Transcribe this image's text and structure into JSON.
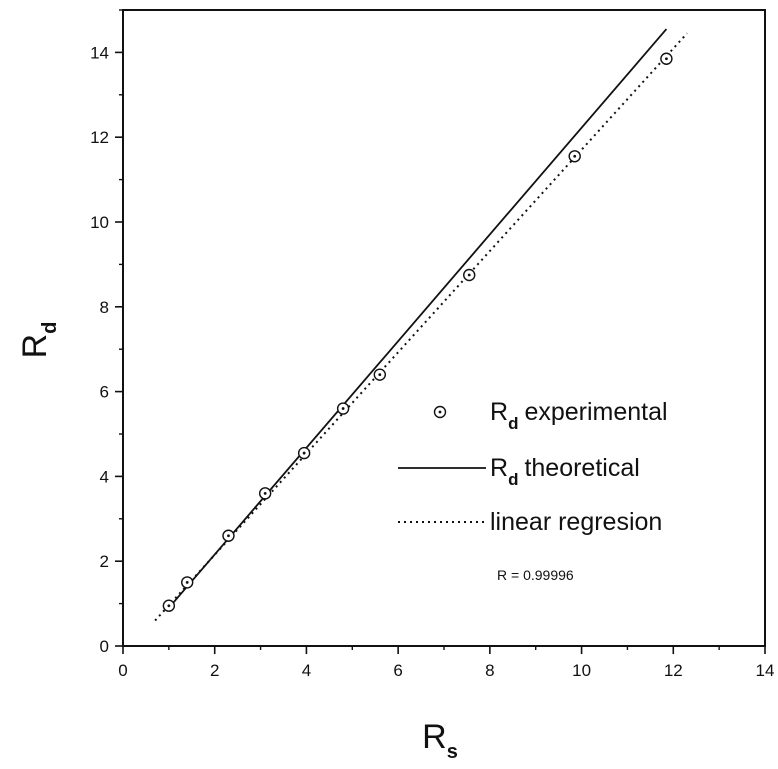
{
  "chart_data": {
    "type": "scatter",
    "xlabel": {
      "main": "R",
      "sub": "s"
    },
    "ylabel": {
      "main": "R",
      "sub": "d"
    },
    "xlim": [
      0,
      14
    ],
    "ylim": [
      0,
      15
    ],
    "x_ticks": [
      0,
      2,
      4,
      6,
      8,
      10,
      12,
      14
    ],
    "y_ticks": [
      0,
      2,
      4,
      6,
      8,
      10,
      12,
      14
    ],
    "grid": false,
    "legend_position": "lower-right",
    "series": [
      {
        "name": {
          "main": "R",
          "sub": "d",
          "rest": "experimental"
        },
        "kind": "scatter",
        "marker": "circle-dot",
        "x": [
          1.0,
          1.4,
          2.3,
          3.1,
          3.95,
          4.8,
          5.6,
          7.55,
          9.85,
          11.85
        ],
        "y": [
          0.95,
          1.5,
          2.6,
          3.6,
          4.55,
          5.6,
          6.4,
          8.75,
          11.55,
          13.85
        ]
      },
      {
        "name": {
          "main": "R",
          "sub": "d",
          "rest": "theoretical"
        },
        "kind": "line",
        "style": "solid",
        "x": [
          1.0,
          11.85
        ],
        "y": [
          0.9,
          14.55
        ]
      },
      {
        "name": {
          "main": "linear regresion",
          "sub": "",
          "rest": ""
        },
        "kind": "line",
        "style": "dotted",
        "x": [
          0.7,
          12.3
        ],
        "y": [
          0.6,
          14.45
        ]
      }
    ],
    "annotations": [
      "R = 0.99996"
    ]
  }
}
